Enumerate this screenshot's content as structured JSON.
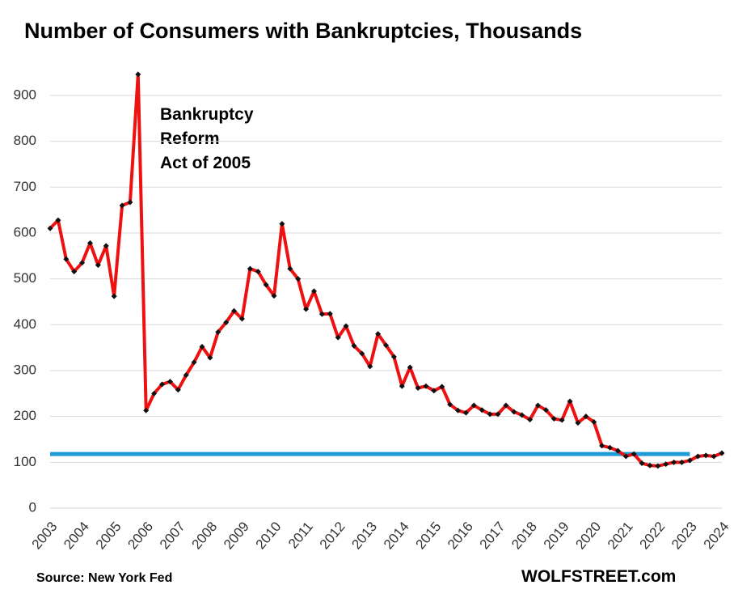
{
  "chart_data": {
    "type": "line",
    "title": "Number of Consumers with Bankruptcies, Thousands",
    "source": "Source: New York Fed",
    "brand": "WOLFSTREET.com",
    "annotation": [
      "Bankruptcy",
      "Reform",
      "Act of 2005"
    ],
    "categories": [
      "2003",
      null,
      null,
      null,
      "2004",
      null,
      null,
      null,
      "2005",
      null,
      null,
      null,
      "2006",
      null,
      null,
      null,
      "2007",
      null,
      null,
      null,
      "2008",
      null,
      null,
      null,
      "2009",
      null,
      null,
      null,
      "2010",
      null,
      null,
      null,
      "2011",
      null,
      null,
      null,
      "2012",
      null,
      null,
      null,
      "2013",
      null,
      null,
      null,
      "2014",
      null,
      null,
      null,
      "2015",
      null,
      null,
      null,
      "2016",
      null,
      null,
      null,
      "2017",
      null,
      null,
      null,
      "2018",
      null,
      null,
      null,
      "2019",
      null,
      null,
      null,
      "2020",
      null,
      null,
      null,
      "2021",
      null,
      null,
      null,
      "2022",
      null,
      null,
      null,
      "2023",
      null,
      null,
      null,
      "2024"
    ],
    "series": [
      {
        "name": "Consumers with Bankruptcies",
        "color": "#ee1111",
        "marker_color": "#111111",
        "values": [
          610,
          628,
          543,
          516,
          535,
          578,
          530,
          572,
          462,
          660,
          667,
          946,
          213,
          250,
          270,
          276,
          258,
          290,
          318,
          352,
          328,
          384,
          405,
          430,
          413,
          522,
          516,
          487,
          463,
          620,
          522,
          500,
          434,
          473,
          423,
          424,
          372,
          397,
          354,
          337,
          309,
          380,
          355,
          330,
          266,
          307,
          262,
          266,
          256,
          265,
          226,
          213,
          208,
          224,
          214,
          205,
          205,
          224,
          210,
          203,
          193,
          224,
          214,
          195,
          192,
          233,
          186,
          200,
          188,
          136,
          132,
          125,
          113,
          118,
          98,
          93,
          92,
          96,
          100,
          100,
          104,
          113,
          115,
          113,
          120
        ]
      }
    ],
    "reference_line": {
      "value": 118,
      "color": "#1f9bd7",
      "until": "2023"
    },
    "ylim": [
      0,
      950
    ],
    "yticks": [
      0,
      100,
      200,
      300,
      400,
      500,
      600,
      700,
      800,
      900
    ],
    "grid": true
  }
}
